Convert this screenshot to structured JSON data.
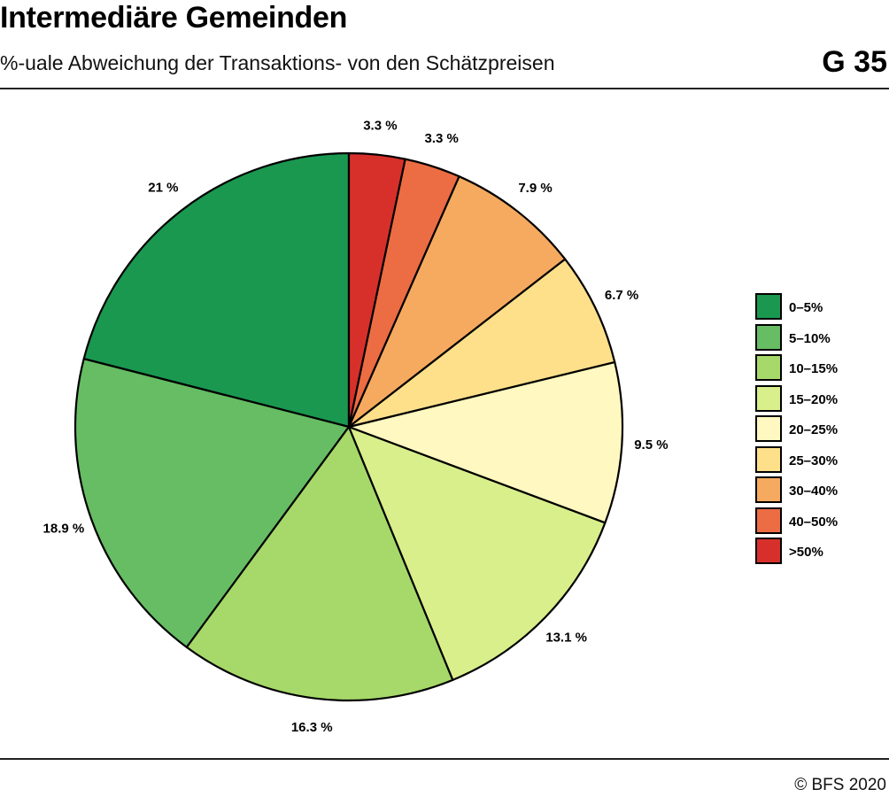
{
  "header": {
    "title": "Intermediäre Gemeinden",
    "subtitle": "%-uale Abweichung der Transaktions- von den Schätzpreisen",
    "chart_code": "G 35"
  },
  "footer": {
    "source": "© BFS 2020"
  },
  "chart_data": {
    "type": "pie",
    "title": "Intermediäre Gemeinden",
    "subtitle": "%-uale Abweichung der Transaktions- von den Schätzpreisen",
    "start_angle_deg": 0,
    "direction": "clockwise",
    "legend_position": "right",
    "slices": [
      {
        "name": "0–5%",
        "value": 21.0,
        "label": "21 %",
        "color": "#1a9850"
      },
      {
        "name": "5–10%",
        "value": 18.9,
        "label": "18.9 %",
        "color": "#66bd63"
      },
      {
        "name": "10–15%",
        "value": 16.3,
        "label": "16.3 %",
        "color": "#a6d96a"
      },
      {
        "name": "15–20%",
        "value": 13.1,
        "label": "13.1 %",
        "color": "#d9ef8b"
      },
      {
        "name": "20–25%",
        "value": 9.5,
        "label": "9.5 %",
        "color": "#fff8c0"
      },
      {
        "name": "25–30%",
        "value": 6.7,
        "label": "6.7 %",
        "color": "#fee08b"
      },
      {
        "name": "30–40%",
        "value": 7.9,
        "label": "7.9 %",
        "color": "#f6aa5f"
      },
      {
        "name": "40–50%",
        "value": 3.3,
        "label": "3.3 %",
        "color": "#ec6c43"
      },
      {
        "name": ">50%",
        "value": 3.3,
        "label": "3.3 %",
        "color": "#d7302a"
      }
    ]
  }
}
